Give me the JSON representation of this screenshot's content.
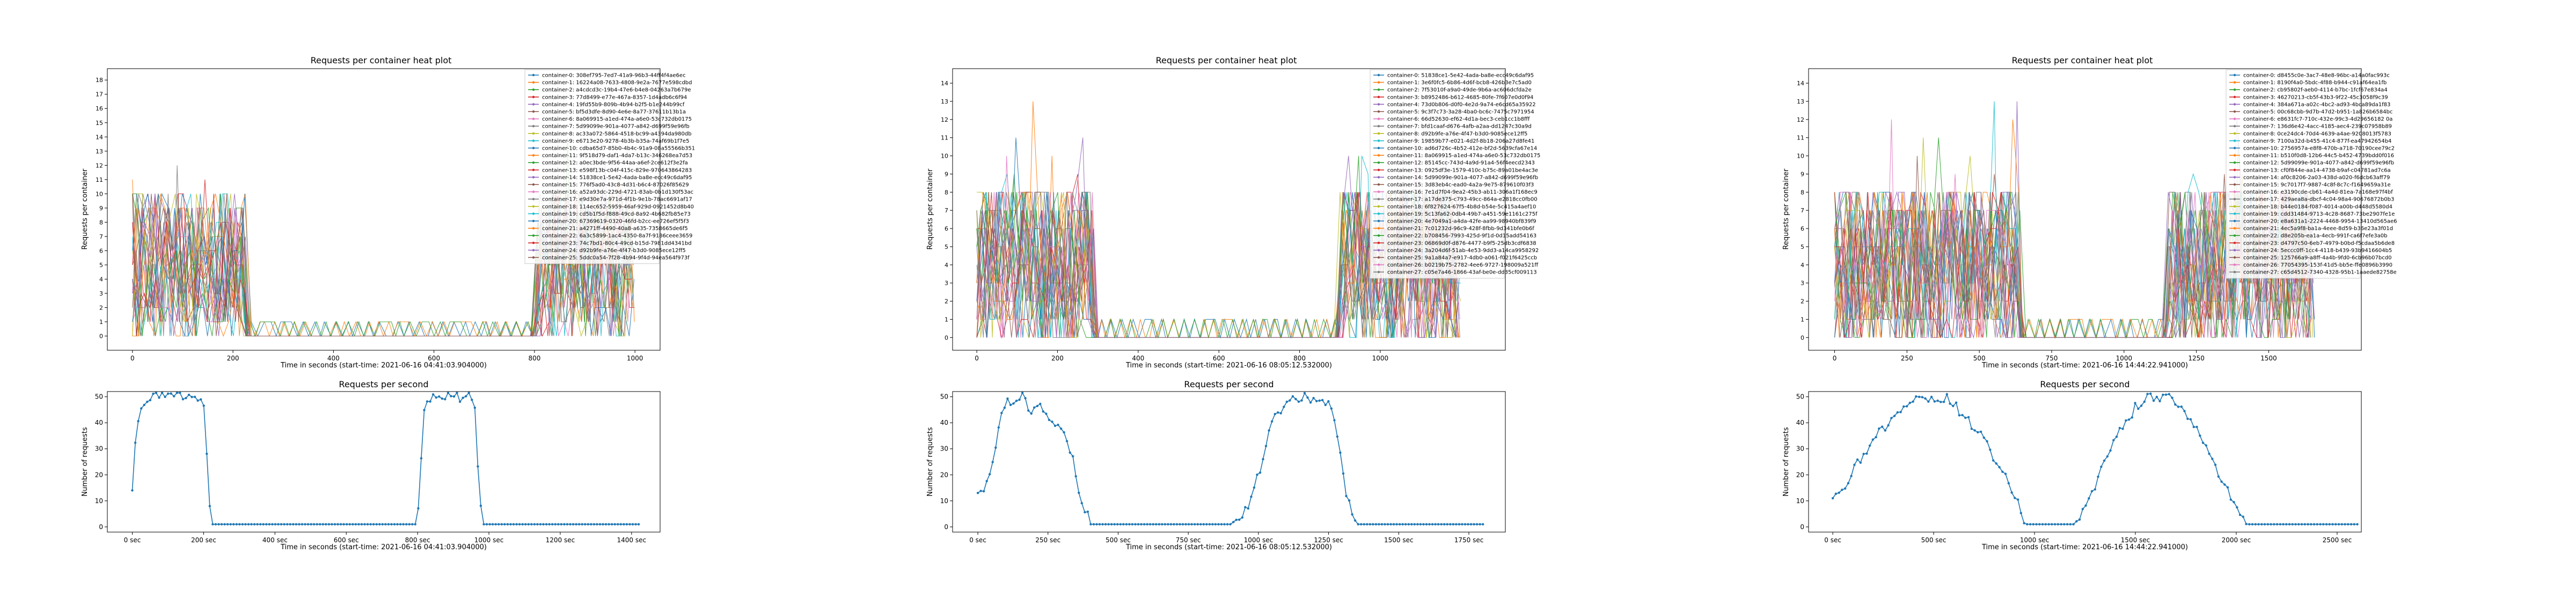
{
  "colors": [
    "#1f77b4",
    "#ff7f0e",
    "#2ca02c",
    "#d62728",
    "#9467bd",
    "#8c564b",
    "#e377c2",
    "#7f7f7f",
    "#bcbd22",
    "#17becf"
  ],
  "chart_data": [
    {
      "type": "line",
      "title": "Requests per container heat plot",
      "xlabel": "Time in seconds (start-time: 2021-06-16 04:41:03.904000)",
      "ylabel": "Requests per container",
      "xlim": [
        -50,
        1050
      ],
      "ylim": [
        -1,
        18.8
      ],
      "xticks": [
        0,
        200,
        400,
        600,
        800,
        1000
      ],
      "xtick_labels": [
        "0",
        "200",
        "400",
        "600",
        "800",
        "1000"
      ],
      "yticks": [
        0,
        1,
        2,
        3,
        4,
        5,
        6,
        7,
        8,
        9,
        10,
        11,
        12,
        13,
        14,
        15,
        16,
        17,
        18
      ],
      "grid": false,
      "legend_position": "right",
      "active_ranges": [
        [
          0,
          225
        ],
        [
          805,
          1000
        ]
      ],
      "active_max": 10,
      "idle_level": 1,
      "series": [
        {
          "name": "container-0: 308ef795-7ed7-41a9-96b3-44ff4f4ae6ec"
        },
        {
          "name": "container-1: 16224a08-7633-4808-9e2a-7677e598cdbd"
        },
        {
          "name": "container-2: a4cdcd3c-19b4-47e6-b4e8-04263a7b679e"
        },
        {
          "name": "container-3: 77d8499-e77e-467a-8357-1d4adb6c6f94"
        },
        {
          "name": "container-4: 19fd55b9-809b-4b94-b2f5-b1e244b99cf"
        },
        {
          "name": "container-5: bf5d3dfe-8d90-4e6e-8a77-37611b13b1a"
        },
        {
          "name": "container-6: 8a069915-a1ed-474a-a6e0-53c732db0175"
        },
        {
          "name": "container-7: 5d99099e-901a-4077-a842-d699f59e96fb"
        },
        {
          "name": "container-8: ac33a072-5864-4518-bc99-a4394da980db"
        },
        {
          "name": "container-9: e6713e20-9278-4b3b-b35a-74af69b1f7e5"
        },
        {
          "name": "container-10: cdba65d7-85b0-4b4c-91a9-08a55566b351"
        },
        {
          "name": "container-11: 9f518d79-daf1-4da7-b13c-346268ea7d53"
        },
        {
          "name": "container-12: a0ec3bde-9f56-44aa-a6ef-2ce612f3e2fa"
        },
        {
          "name": "container-13: e598f13b-c04f-415c-829e-970643864283"
        },
        {
          "name": "container-14: 51838ce1-5e42-4ada-ba8e-ecc49c6daf95"
        },
        {
          "name": "container-15: 776f5ad0-43c8-4d31-b6c4-87026f85629"
        },
        {
          "name": "container-16: a52a93dc-229d-4721-83ab-0b1d130f53ac"
        },
        {
          "name": "container-17: e9d30e7a-971d-4f1b-9e1b-78ac6691af17"
        },
        {
          "name": "container-18: 114ec652-5959-46af-929d-0921452d8b40"
        },
        {
          "name": "container-19: cd5b1f5d-f888-49cd-8a92-4b682fb85e73"
        },
        {
          "name": "container-20: 67369619-0320-46fd-b2cc-ee726ef5f5f3"
        },
        {
          "name": "container-21: a4271ff-4490-40a8-a635-7358665de6f5"
        },
        {
          "name": "container-22: 6a3c5899-1ac4-4350-8a7f-9186ceee3659"
        },
        {
          "name": "container-23: 74c7bd1-80c4-49cd-b15d-7981dd4341bd"
        },
        {
          "name": "container-24: d92b9fe-a76e-4f47-b3d0-9085ece12ff5"
        },
        {
          "name": "container-25: 5ddc0a54-7f28-4b94-9f4d-94ea564f973f"
        }
      ]
    },
    {
      "type": "line",
      "title": "Requests per second",
      "xlabel": "Time in seconds (start-time: 2021-06-16 04:41:03.904000)",
      "ylabel": "Number of requests",
      "xlim": [
        -70,
        1480
      ],
      "ylim": [
        -2,
        52
      ],
      "xticks": [
        0,
        200,
        400,
        600,
        800,
        1000,
        1200,
        1400
      ],
      "xtick_labels": [
        "0 sec",
        "200 sec",
        "400 sec",
        "600 sec",
        "800 sec",
        "1000 sec",
        "1200 sec",
        "1400 sec"
      ],
      "yticks": [
        0,
        10,
        20,
        30,
        40,
        50
      ],
      "grid": false,
      "x": [
        0,
        10,
        20,
        30,
        40,
        60,
        80,
        100,
        120,
        140,
        160,
        180,
        200,
        210,
        220,
        240,
        400,
        600,
        800,
        810,
        820,
        840,
        860,
        880,
        900,
        920,
        950,
        960,
        970,
        980,
        1000,
        1200,
        1420
      ],
      "y": [
        15,
        36,
        44,
        48,
        50,
        50,
        51,
        51,
        50,
        51,
        51,
        50,
        48,
        25,
        1,
        1,
        1,
        1,
        1,
        25,
        48,
        50,
        51,
        51,
        51,
        50,
        51,
        48,
        20,
        1,
        1,
        1,
        1
      ]
    },
    {
      "type": "line",
      "title": "Requests per container heat plot",
      "xlabel": "Time in seconds (start-time: 2021-06-16 08:05:12.532000)",
      "ylabel": "Requests per container",
      "xlim": [
        -60,
        1310
      ],
      "ylim": [
        -0.7,
        14.8
      ],
      "xticks": [
        0,
        200,
        400,
        600,
        800,
        1000
      ],
      "xtick_labels": [
        "0",
        "200",
        "400",
        "600",
        "800",
        "1000"
      ],
      "yticks": [
        0,
        1,
        2,
        3,
        4,
        5,
        6,
        7,
        8,
        9,
        10,
        11,
        12,
        13,
        14
      ],
      "grid": false,
      "legend_position": "right",
      "active_ranges": [
        [
          0,
          290
        ],
        [
          900,
          1200
        ]
      ],
      "active_max": 8,
      "idle_level": 1,
      "series": [
        {
          "name": "container-0: 51838ce1-5e42-4ada-ba8e-ecc49c6daf95"
        },
        {
          "name": "container-1: 3e6f0fc5-6b86-4d6f-bcb8-426b3e7c5ad0"
        },
        {
          "name": "container-2: 7f53010f-a9a0-49de-9b6a-ac606dcfda2e"
        },
        {
          "name": "container-3: b8952486-b612-4685-80fe-7f607e0d0f94"
        },
        {
          "name": "container-4: 73d0b806-d0f0-4e2d-9a74-e6cd65a35922"
        },
        {
          "name": "container-5: 9c3f7c73-3a28-4ba0-bc6c-7475c7971954"
        },
        {
          "name": "container-6: 66d52630-ef62-4d1a-bec3-ceb1cc1b8fff"
        },
        {
          "name": "container-7: bfd1caaf-d676-4afb-a2aa-dd1247c30a9d"
        },
        {
          "name": "container-8: d92b9fe-a76e-4f47-b3d0-9085ece12ff5"
        },
        {
          "name": "container-9: 19859b77-e021-4d2f-8b18-206a27d8fe41"
        },
        {
          "name": "container-10: ad6d726c-4b52-412e-bf2d-5639cfa67e14"
        },
        {
          "name": "container-11: 8a069915-a1ed-474a-a6e0-53c732db0175"
        },
        {
          "name": "container-12: 85145cc-743d-4a9d-91a4-56f4eecd2343"
        },
        {
          "name": "container-13: 0925df3e-1579-410c-b75c-89a01be4ac3e"
        },
        {
          "name": "container-14: 5d99099e-901a-4077-a842-d699f59e96fb"
        },
        {
          "name": "container-15: 3d83eb4c-ead0-4a2a-9e75-879610f03f3"
        },
        {
          "name": "container-16: 7e1d7f04-9ea2-45b3-ab11-306a1f168ec9"
        },
        {
          "name": "container-17: a17de375-c793-49cc-864a-e2818cc0fb00"
        },
        {
          "name": "container-18: 6f827624-67f5-4b8d-b54e-5c415a4aef10"
        },
        {
          "name": "container-19: 5c13fa62-0db4-49b7-a451-59e1161c275f"
        },
        {
          "name": "container-20: 4e7049a1-a4da-42fe-aa99-98940bf839f9"
        },
        {
          "name": "container-21: 7c01232d-96c9-428f-8fbb-9d341bfe0b6f"
        },
        {
          "name": "container-22: b708456-7993-425d-9f1d-0d15add54163"
        },
        {
          "name": "container-23: 06869d0f-d876-4477-b9f5-25db3cdf6838"
        },
        {
          "name": "container-24: 3a204d6f-51ab-4e53-9dd3-a14ca9958292"
        },
        {
          "name": "container-25: 9a1a84a7-e917-4db0-a061-f021f6425ccb"
        },
        {
          "name": "container-26: b0219b75-2782-4ee6-9727-198009a521ff"
        },
        {
          "name": "container-27: c05e7a46-1866-43af-be0e-dd35cf009113"
        }
      ]
    },
    {
      "type": "line",
      "title": "Requests per second",
      "xlabel": "Time in seconds (start-time: 2021-06-16 08:05:12.532000)",
      "ylabel": "Number of requests",
      "xlim": [
        -90,
        1880
      ],
      "ylim": [
        -2,
        52
      ],
      "xticks": [
        0,
        250,
        500,
        750,
        1000,
        1250,
        1500,
        1750
      ],
      "xtick_labels": [
        "0 sec",
        "250 sec",
        "500 sec",
        "750 sec",
        "1000 sec",
        "1250 sec",
        "1500 sec",
        "1750 sec"
      ],
      "yticks": [
        0,
        10,
        20,
        30,
        40,
        50
      ],
      "grid": false,
      "x": [
        0,
        20,
        40,
        60,
        80,
        100,
        130,
        160,
        190,
        220,
        250,
        280,
        310,
        340,
        360,
        380,
        400,
        450,
        600,
        800,
        900,
        950,
        1000,
        1050,
        1100,
        1150,
        1200,
        1250,
        1270,
        1290,
        1310,
        1350,
        1500,
        1800
      ],
      "y": [
        14,
        14,
        21,
        30,
        40,
        49,
        47,
        50,
        45,
        48,
        42,
        38,
        36,
        26,
        14,
        8,
        1,
        1,
        1,
        1,
        1,
        5,
        20,
        40,
        48,
        50,
        49,
        47,
        40,
        30,
        12,
        1,
        1,
        1
      ]
    },
    {
      "type": "line",
      "title": "Requests per container heat plot",
      "xlabel": "Time in seconds (start-time: 2021-06-16 14:44:22.941000)",
      "ylabel": "Requests per container",
      "xlim": [
        -90,
        1820
      ],
      "ylim": [
        -0.7,
        14.8
      ],
      "xticks": [
        0,
        250,
        500,
        750,
        1000,
        1250,
        1500
      ],
      "xtick_labels": [
        "0",
        "250",
        "500",
        "750",
        "1000",
        "1250",
        "1500"
      ],
      "yticks": [
        0,
        1,
        2,
        3,
        4,
        5,
        6,
        7,
        8,
        9,
        10,
        11,
        12,
        13,
        14
      ],
      "grid": false,
      "legend_position": "right",
      "active_ranges": [
        [
          0,
          640
        ],
        [
          1150,
          1660
        ]
      ],
      "active_max": 8,
      "idle_level": 1,
      "series": [
        {
          "name": "container-0: d8455c0e-3ac7-48e8-96bc-a14a0fac993c"
        },
        {
          "name": "container-1: 8190f4a0-5bdc-4f88-b944-c91af64ea1fb"
        },
        {
          "name": "container-2: cb95802f-aeb0-4114-b7bc-1fcf67e834a4"
        },
        {
          "name": "container-3: 46270213-cb5f-43b3-9f22-45c3058f9c39"
        },
        {
          "name": "container-4: 384a671a-a02c-4bc2-ad93-4bca89da1f83"
        },
        {
          "name": "container-5: 00c68cbb-9d7b-47d2-b951-1a826b6584bc"
        },
        {
          "name": "container-6: e8631fc7-710c-432e-99c3-4d29656182 0a"
        },
        {
          "name": "container-7: 136d6e42-4acc-4185-aec4-239c07958b89"
        },
        {
          "name": "container-8: 0ce24dc4-70d4-4639-a4ae-9208013f5783"
        },
        {
          "name": "container-9: 7100a32d-b455-41c4-877f-ea47942654b4"
        },
        {
          "name": "container-10: 2756957a-e8f8-470b-a718-70190cee79c2"
        },
        {
          "name": "container-11: b510f0d8-12b6-44c5-b452-4739bdd0f016"
        },
        {
          "name": "container-12: 5d99099e-901a-4077-a842-d699f59e96fb"
        },
        {
          "name": "container-13: cf0f844e-aa14-4738-b9af-c04781ad7c6a"
        },
        {
          "name": "container-14: af0c8206-2a03-438d-a020-f6dcb63aff79"
        },
        {
          "name": "container-15: 9c7017f7-9887-4c8f-8c7c-f1649659a31e"
        },
        {
          "name": "container-16: e3190cde-cb61-4a4d-81ea-7a168e97f4bf"
        },
        {
          "name": "container-17: 429aea8a-dbcf-4c04-98a4-90676872b0b3"
        },
        {
          "name": "container-18: b44e0184-f087-4014-a00b-d448d5580d4"
        },
        {
          "name": "container-19: cdd31484-9713-4c28-8687-73be2907fe1e"
        },
        {
          "name": "container-20: e8a631a1-2224-4468-9954-13410d565ae6"
        },
        {
          "name": "container-21: 4ec5a9f8-ba1a-4eee-8d59-b36e23a3f01d"
        },
        {
          "name": "container-22: d8e205b-ea1a-4ecb-991f-ca6f7efe3a0b"
        },
        {
          "name": "container-23: d4797c50-6eb7-4979-b0bd-f5cdaa5b6de8"
        },
        {
          "name": "container-24: 5eccc0ff-1cc4-4118-b439-93b9416604b5"
        },
        {
          "name": "container-25: 125766a9-a8ff-4a4b-9fd0-6cb96b07bcd0"
        },
        {
          "name": "container-26: 77054395-153f-41d5-bb5e-ffe0896b3990"
        },
        {
          "name": "container-27: c65d4512-7340-4328-95b1-1aaede82758e"
        }
      ]
    },
    {
      "type": "line",
      "title": "Requests per second",
      "xlabel": "Time in seconds (start-time: 2021-06-16 14:44:22.941000)",
      "ylabel": "Number of requests",
      "xlim": [
        -120,
        2620
      ],
      "ylim": [
        -2,
        52
      ],
      "xticks": [
        0,
        500,
        1000,
        1500,
        2000,
        2500
      ],
      "xtick_labels": [
        "0 sec",
        "500 sec",
        "1000 sec",
        "1500 sec",
        "2000 sec",
        "2500 sec"
      ],
      "yticks": [
        0,
        10,
        20,
        30,
        40,
        50
      ],
      "grid": false,
      "x": [
        0,
        50,
        100,
        150,
        200,
        250,
        300,
        350,
        400,
        450,
        500,
        550,
        600,
        650,
        700,
        750,
        800,
        850,
        900,
        950,
        1000,
        1050,
        1100,
        1150,
        1200,
        1250,
        1300,
        1350,
        1400,
        1450,
        1500,
        1550,
        1600,
        1650,
        1700,
        1750,
        1800,
        1850,
        1900,
        1950,
        2000,
        2050,
        2100,
        2300,
        2500,
        2600
      ],
      "y": [
        12,
        15,
        22,
        27,
        33,
        38,
        43,
        46,
        48,
        50,
        49,
        50,
        47,
        43,
        38,
        33,
        26,
        20,
        13,
        1,
        1,
        1,
        1,
        1,
        1,
        8,
        15,
        25,
        33,
        40,
        46,
        49,
        50,
        50,
        48,
        44,
        38,
        30,
        22,
        15,
        8,
        1,
        1,
        1,
        1,
        1
      ]
    }
  ]
}
